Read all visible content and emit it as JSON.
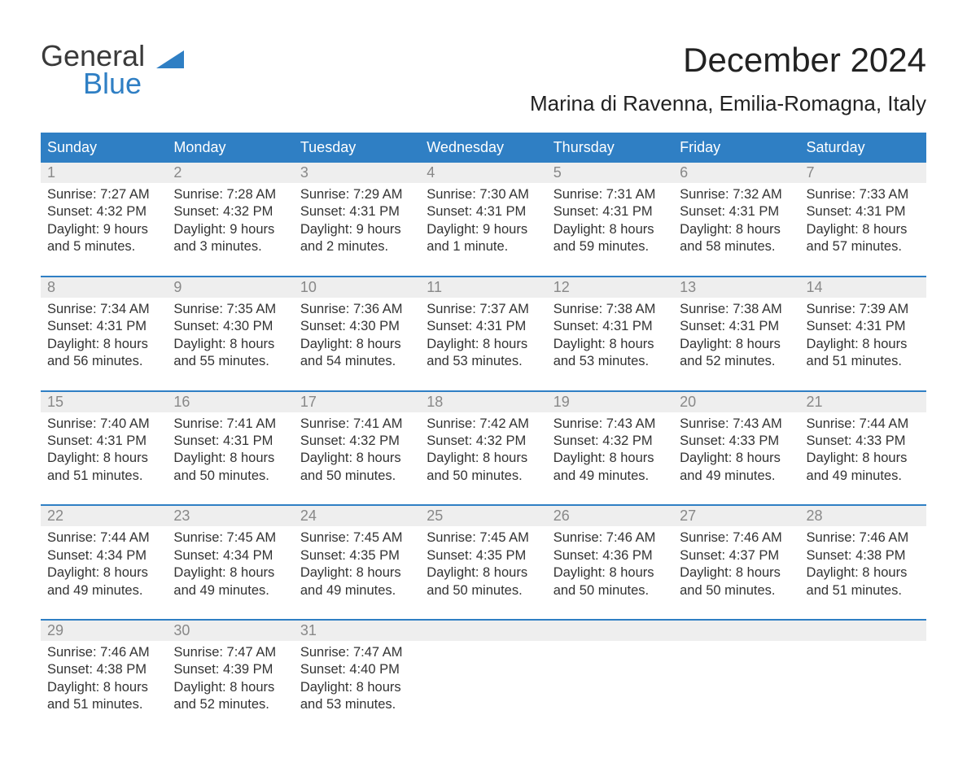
{
  "brand": {
    "line1": "General",
    "line2": "Blue",
    "line1_color": "#3a3a3a",
    "line2_color": "#2f7fc4",
    "triangle_color": "#2f7fc4"
  },
  "header": {
    "month_title": "December 2024",
    "location": "Marina di Ravenna, Emilia-Romagna, Italy"
  },
  "colors": {
    "header_bg": "#2f7fc4",
    "header_text": "#ffffff",
    "daynum_bg": "#eeeeee",
    "daynum_text": "#888888",
    "body_text": "#333333",
    "page_bg": "#ffffff",
    "week_divider": "#2f7fc4"
  },
  "fonts": {
    "month_title_pt": 42,
    "location_pt": 26,
    "weekday_pt": 18,
    "daynum_pt": 18,
    "body_pt": 16.5,
    "family": "Arial"
  },
  "calendar": {
    "weekdays": [
      "Sunday",
      "Monday",
      "Tuesday",
      "Wednesday",
      "Thursday",
      "Friday",
      "Saturday"
    ],
    "weeks": [
      {
        "days": [
          {
            "num": "1",
            "sunrise": "Sunrise: 7:27 AM",
            "sunset": "Sunset: 4:32 PM",
            "d1": "Daylight: 9 hours",
            "d2": "and 5 minutes."
          },
          {
            "num": "2",
            "sunrise": "Sunrise: 7:28 AM",
            "sunset": "Sunset: 4:32 PM",
            "d1": "Daylight: 9 hours",
            "d2": "and 3 minutes."
          },
          {
            "num": "3",
            "sunrise": "Sunrise: 7:29 AM",
            "sunset": "Sunset: 4:31 PM",
            "d1": "Daylight: 9 hours",
            "d2": "and 2 minutes."
          },
          {
            "num": "4",
            "sunrise": "Sunrise: 7:30 AM",
            "sunset": "Sunset: 4:31 PM",
            "d1": "Daylight: 9 hours",
            "d2": "and 1 minute."
          },
          {
            "num": "5",
            "sunrise": "Sunrise: 7:31 AM",
            "sunset": "Sunset: 4:31 PM",
            "d1": "Daylight: 8 hours",
            "d2": "and 59 minutes."
          },
          {
            "num": "6",
            "sunrise": "Sunrise: 7:32 AM",
            "sunset": "Sunset: 4:31 PM",
            "d1": "Daylight: 8 hours",
            "d2": "and 58 minutes."
          },
          {
            "num": "7",
            "sunrise": "Sunrise: 7:33 AM",
            "sunset": "Sunset: 4:31 PM",
            "d1": "Daylight: 8 hours",
            "d2": "and 57 minutes."
          }
        ]
      },
      {
        "days": [
          {
            "num": "8",
            "sunrise": "Sunrise: 7:34 AM",
            "sunset": "Sunset: 4:31 PM",
            "d1": "Daylight: 8 hours",
            "d2": "and 56 minutes."
          },
          {
            "num": "9",
            "sunrise": "Sunrise: 7:35 AM",
            "sunset": "Sunset: 4:30 PM",
            "d1": "Daylight: 8 hours",
            "d2": "and 55 minutes."
          },
          {
            "num": "10",
            "sunrise": "Sunrise: 7:36 AM",
            "sunset": "Sunset: 4:30 PM",
            "d1": "Daylight: 8 hours",
            "d2": "and 54 minutes."
          },
          {
            "num": "11",
            "sunrise": "Sunrise: 7:37 AM",
            "sunset": "Sunset: 4:31 PM",
            "d1": "Daylight: 8 hours",
            "d2": "and 53 minutes."
          },
          {
            "num": "12",
            "sunrise": "Sunrise: 7:38 AM",
            "sunset": "Sunset: 4:31 PM",
            "d1": "Daylight: 8 hours",
            "d2": "and 53 minutes."
          },
          {
            "num": "13",
            "sunrise": "Sunrise: 7:38 AM",
            "sunset": "Sunset: 4:31 PM",
            "d1": "Daylight: 8 hours",
            "d2": "and 52 minutes."
          },
          {
            "num": "14",
            "sunrise": "Sunrise: 7:39 AM",
            "sunset": "Sunset: 4:31 PM",
            "d1": "Daylight: 8 hours",
            "d2": "and 51 minutes."
          }
        ]
      },
      {
        "days": [
          {
            "num": "15",
            "sunrise": "Sunrise: 7:40 AM",
            "sunset": "Sunset: 4:31 PM",
            "d1": "Daylight: 8 hours",
            "d2": "and 51 minutes."
          },
          {
            "num": "16",
            "sunrise": "Sunrise: 7:41 AM",
            "sunset": "Sunset: 4:31 PM",
            "d1": "Daylight: 8 hours",
            "d2": "and 50 minutes."
          },
          {
            "num": "17",
            "sunrise": "Sunrise: 7:41 AM",
            "sunset": "Sunset: 4:32 PM",
            "d1": "Daylight: 8 hours",
            "d2": "and 50 minutes."
          },
          {
            "num": "18",
            "sunrise": "Sunrise: 7:42 AM",
            "sunset": "Sunset: 4:32 PM",
            "d1": "Daylight: 8 hours",
            "d2": "and 50 minutes."
          },
          {
            "num": "19",
            "sunrise": "Sunrise: 7:43 AM",
            "sunset": "Sunset: 4:32 PM",
            "d1": "Daylight: 8 hours",
            "d2": "and 49 minutes."
          },
          {
            "num": "20",
            "sunrise": "Sunrise: 7:43 AM",
            "sunset": "Sunset: 4:33 PM",
            "d1": "Daylight: 8 hours",
            "d2": "and 49 minutes."
          },
          {
            "num": "21",
            "sunrise": "Sunrise: 7:44 AM",
            "sunset": "Sunset: 4:33 PM",
            "d1": "Daylight: 8 hours",
            "d2": "and 49 minutes."
          }
        ]
      },
      {
        "days": [
          {
            "num": "22",
            "sunrise": "Sunrise: 7:44 AM",
            "sunset": "Sunset: 4:34 PM",
            "d1": "Daylight: 8 hours",
            "d2": "and 49 minutes."
          },
          {
            "num": "23",
            "sunrise": "Sunrise: 7:45 AM",
            "sunset": "Sunset: 4:34 PM",
            "d1": "Daylight: 8 hours",
            "d2": "and 49 minutes."
          },
          {
            "num": "24",
            "sunrise": "Sunrise: 7:45 AM",
            "sunset": "Sunset: 4:35 PM",
            "d1": "Daylight: 8 hours",
            "d2": "and 49 minutes."
          },
          {
            "num": "25",
            "sunrise": "Sunrise: 7:45 AM",
            "sunset": "Sunset: 4:35 PM",
            "d1": "Daylight: 8 hours",
            "d2": "and 50 minutes."
          },
          {
            "num": "26",
            "sunrise": "Sunrise: 7:46 AM",
            "sunset": "Sunset: 4:36 PM",
            "d1": "Daylight: 8 hours",
            "d2": "and 50 minutes."
          },
          {
            "num": "27",
            "sunrise": "Sunrise: 7:46 AM",
            "sunset": "Sunset: 4:37 PM",
            "d1": "Daylight: 8 hours",
            "d2": "and 50 minutes."
          },
          {
            "num": "28",
            "sunrise": "Sunrise: 7:46 AM",
            "sunset": "Sunset: 4:38 PM",
            "d1": "Daylight: 8 hours",
            "d2": "and 51 minutes."
          }
        ]
      },
      {
        "days": [
          {
            "num": "29",
            "sunrise": "Sunrise: 7:46 AM",
            "sunset": "Sunset: 4:38 PM",
            "d1": "Daylight: 8 hours",
            "d2": "and 51 minutes."
          },
          {
            "num": "30",
            "sunrise": "Sunrise: 7:47 AM",
            "sunset": "Sunset: 4:39 PM",
            "d1": "Daylight: 8 hours",
            "d2": "and 52 minutes."
          },
          {
            "num": "31",
            "sunrise": "Sunrise: 7:47 AM",
            "sunset": "Sunset: 4:40 PM",
            "d1": "Daylight: 8 hours",
            "d2": "and 53 minutes."
          },
          {
            "num": "",
            "sunrise": "",
            "sunset": "",
            "d1": "",
            "d2": ""
          },
          {
            "num": "",
            "sunrise": "",
            "sunset": "",
            "d1": "",
            "d2": ""
          },
          {
            "num": "",
            "sunrise": "",
            "sunset": "",
            "d1": "",
            "d2": ""
          },
          {
            "num": "",
            "sunrise": "",
            "sunset": "",
            "d1": "",
            "d2": ""
          }
        ]
      }
    ]
  }
}
